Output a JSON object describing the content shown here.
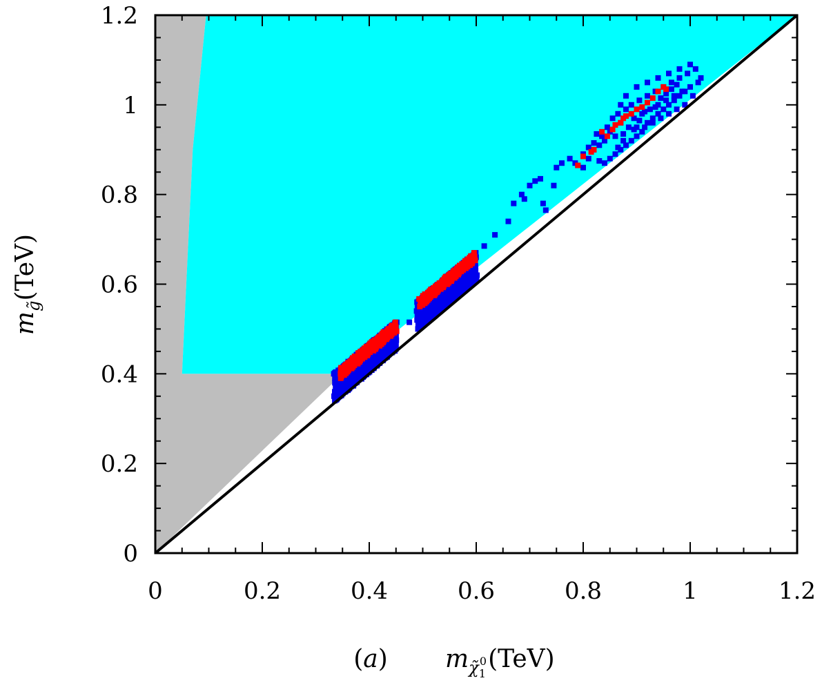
{
  "chart_data": {
    "type": "scatter",
    "panel_label": "(a)",
    "xlabel": {
      "symbol": "m",
      "subscript": "χ̃",
      "subsub": "1",
      "supsup": "0",
      "unit": "(TeV)"
    },
    "ylabel": {
      "symbol": "m",
      "subscript": "g̃",
      "unit": "(TeV)"
    },
    "xlim": [
      0,
      1.2
    ],
    "ylim": [
      0,
      1.2
    ],
    "xticks": [
      "0",
      "0.2",
      "0.4",
      "0.6",
      "0.8",
      "1",
      "1.2"
    ],
    "yticks": [
      "0",
      "0.2",
      "0.4",
      "0.6",
      "0.8",
      "1",
      "1.2"
    ],
    "xtick_values": [
      0,
      0.2,
      0.4,
      0.6,
      0.8,
      1.0,
      1.2
    ],
    "ytick_values": [
      0,
      0.2,
      0.4,
      0.6,
      0.8,
      1.0,
      1.2
    ],
    "grid": false,
    "colors": {
      "gray_region": "#bebebe",
      "cyan_region": "#00ffff",
      "blue_points": "#0000ee",
      "red_points": "#ff0000",
      "diagonal": "#000000"
    },
    "regions": [
      {
        "name": "gray",
        "polygon": [
          [
            0,
            0
          ],
          [
            0,
            1.2
          ],
          [
            0.095,
            1.2
          ],
          [
            0.085,
            1.08
          ],
          [
            0.07,
            0.9
          ],
          [
            0.058,
            0.6
          ],
          [
            0.05,
            0.4
          ],
          [
            0.35,
            0.4
          ],
          [
            0,
            0
          ]
        ]
      },
      {
        "name": "cyan",
        "polygon": [
          [
            0.05,
            0.4
          ],
          [
            0.058,
            0.6
          ],
          [
            0.07,
            0.9
          ],
          [
            0.085,
            1.08
          ],
          [
            0.095,
            1.2
          ],
          [
            1.2,
            1.2
          ],
          [
            0.35,
            0.4
          ]
        ]
      }
    ],
    "diagonal": [
      [
        0,
        0
      ],
      [
        1.2,
        1.2
      ]
    ],
    "series": [
      {
        "color": "blue",
        "bands": [
          {
            "x": [
              0.335,
              0.45
            ],
            "offset": [
              0.005,
              0.065
            ],
            "n": 60
          },
          {
            "x": [
              0.49,
              0.6
            ],
            "offset": [
              0.01,
              0.07
            ],
            "n": 60
          }
        ],
        "points": [
          [
            0.475,
            0.515
          ],
          [
            0.5,
            0.53
          ],
          [
            0.615,
            0.685
          ],
          [
            0.635,
            0.71
          ],
          [
            0.66,
            0.74
          ],
          [
            0.67,
            0.78
          ],
          [
            0.685,
            0.8
          ],
          [
            0.7,
            0.82
          ],
          [
            0.71,
            0.83
          ],
          [
            0.72,
            0.835
          ],
          [
            0.69,
            0.79
          ],
          [
            0.725,
            0.78
          ],
          [
            0.73,
            0.765
          ],
          [
            0.745,
            0.82
          ],
          [
            0.75,
            0.86
          ],
          [
            0.76,
            0.87
          ],
          [
            0.775,
            0.88
          ],
          [
            0.785,
            0.87
          ],
          [
            0.8,
            0.89
          ],
          [
            0.81,
            0.88
          ],
          [
            0.82,
            0.9
          ],
          [
            0.83,
            0.91
          ],
          [
            0.835,
            0.93
          ],
          [
            0.84,
            0.92
          ],
          [
            0.845,
            0.95
          ],
          [
            0.85,
            0.94
          ],
          [
            0.855,
            0.97
          ],
          [
            0.86,
            0.93
          ],
          [
            0.865,
            0.98
          ],
          [
            0.87,
            0.96
          ],
          [
            0.875,
            0.92
          ],
          [
            0.88,
            0.99
          ],
          [
            0.885,
            0.95
          ],
          [
            0.89,
            1.0
          ],
          [
            0.895,
            0.97
          ],
          [
            0.9,
            0.93
          ],
          [
            0.905,
            1.01
          ],
          [
            0.91,
            0.98
          ],
          [
            0.915,
            0.95
          ],
          [
            0.92,
            1.02
          ],
          [
            0.925,
            0.99
          ],
          [
            0.93,
            0.96
          ],
          [
            0.935,
            1.03
          ],
          [
            0.94,
            1.0
          ],
          [
            0.945,
            0.97
          ],
          [
            0.95,
            1.04
          ],
          [
            0.955,
            1.01
          ],
          [
            0.96,
            0.98
          ],
          [
            0.965,
            1.05
          ],
          [
            0.97,
            1.02
          ],
          [
            0.975,
            0.99
          ],
          [
            0.98,
            1.06
          ],
          [
            0.985,
            1.03
          ],
          [
            0.99,
            1.0
          ],
          [
            0.995,
            1.07
          ],
          [
            1.0,
            1.04
          ],
          [
            1.005,
            1.02
          ],
          [
            1.01,
            1.08
          ],
          [
            1.015,
            1.05
          ],
          [
            1.02,
            1.06
          ],
          [
            0.86,
            0.89
          ],
          [
            0.87,
            0.9
          ],
          [
            0.88,
            0.91
          ],
          [
            0.89,
            0.92
          ],
          [
            0.9,
            0.95
          ],
          [
            0.91,
            0.94
          ],
          [
            0.92,
            0.96
          ],
          [
            0.93,
            0.97
          ],
          [
            0.94,
            0.98
          ],
          [
            0.95,
            0.99
          ],
          [
            0.96,
            1.0
          ],
          [
            0.97,
            1.01
          ],
          [
            0.98,
            1.02
          ],
          [
            0.99,
            1.03
          ],
          [
            0.85,
            0.88
          ],
          [
            0.84,
            0.87
          ],
          [
            0.83,
            0.875
          ],
          [
            0.87,
            1.0
          ],
          [
            0.88,
            1.02
          ],
          [
            0.9,
            1.04
          ],
          [
            0.92,
            1.05
          ],
          [
            0.94,
            1.06
          ],
          [
            0.96,
            1.07
          ],
          [
            0.98,
            1.08
          ],
          [
            1.0,
            1.09
          ],
          [
            0.82,
            0.915
          ],
          [
            0.825,
            0.935
          ],
          [
            0.81,
            0.905
          ],
          [
            0.8,
            0.86
          ],
          [
            0.79,
            0.865
          ],
          [
            0.865,
            0.905
          ],
          [
            0.875,
            0.935
          ],
          [
            0.895,
            0.945
          ],
          [
            0.905,
            0.965
          ],
          [
            0.915,
            0.985
          ],
          [
            0.935,
            0.995
          ],
          [
            0.945,
            1.015
          ],
          [
            0.955,
            1.025
          ],
          [
            0.965,
            1.035
          ],
          [
            0.975,
            1.045
          ]
        ]
      },
      {
        "color": "red",
        "bands": [
          {
            "x": [
              0.345,
              0.45
            ],
            "offset": [
              0.045,
              0.065
            ],
            "n": 30
          },
          {
            "x": [
              0.495,
              0.598
            ],
            "offset": [
              0.055,
              0.072
            ],
            "n": 30
          }
        ],
        "points": [
          [
            0.79,
            0.865
          ],
          [
            0.8,
            0.885
          ],
          [
            0.815,
            0.895
          ],
          [
            0.82,
            0.9
          ],
          [
            0.835,
            0.94
          ],
          [
            0.845,
            0.93
          ],
          [
            0.855,
            0.945
          ],
          [
            0.86,
            0.955
          ],
          [
            0.87,
            0.96
          ],
          [
            0.875,
            0.97
          ],
          [
            0.88,
            0.975
          ],
          [
            0.89,
            0.98
          ],
          [
            0.9,
            0.99
          ],
          [
            0.91,
            0.995
          ],
          [
            0.92,
            1.005
          ],
          [
            0.93,
            1.015
          ],
          [
            0.94,
            1.03
          ],
          [
            0.95,
            1.04
          ],
          [
            0.955,
            1.035
          ]
        ]
      }
    ]
  }
}
